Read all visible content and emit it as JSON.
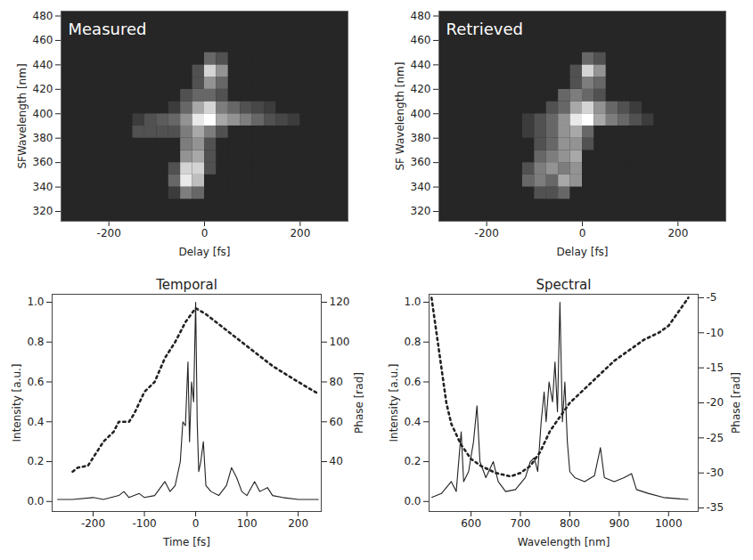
{
  "chart_data": [
    {
      "type": "heatmap",
      "title": "Measured",
      "x_label": "Delay [fs]",
      "y_label": "SFWavelength [nm]",
      "xlim": [
        -300,
        300
      ],
      "ylim": [
        312,
        484
      ],
      "xticks": [
        -200,
        0,
        200
      ],
      "yticks": [
        320,
        340,
        360,
        380,
        400,
        420,
        440,
        460,
        480
      ],
      "x_bins": [
        -150,
        -125,
        -100,
        -75,
        -50,
        -25,
        0,
        25,
        50,
        75,
        100,
        125,
        150,
        175,
        200
      ],
      "y_bins": [
        330,
        340,
        350,
        360,
        370,
        380,
        390,
        400,
        410,
        420,
        430,
        440,
        450
      ],
      "cells": [
        [
          0,
          0,
          0,
          0.1,
          0.4,
          0.3,
          0,
          0,
          0,
          0,
          0,
          0,
          0,
          0
        ],
        [
          0,
          0,
          0,
          0.3,
          0.9,
          0.7,
          0,
          0,
          0,
          0,
          0,
          0,
          0,
          0
        ],
        [
          0,
          0,
          0,
          0.2,
          0.8,
          0.8,
          0.2,
          0,
          0,
          0,
          0,
          0,
          0,
          0
        ],
        [
          0,
          0,
          0,
          0,
          0.5,
          0.6,
          0.2,
          0,
          0,
          0,
          0,
          0,
          0,
          0
        ],
        [
          0,
          0,
          0,
          0,
          0.4,
          0.5,
          0.2,
          0,
          0,
          0,
          0,
          0,
          0,
          0
        ],
        [
          0.2,
          0.2,
          0.2,
          0.2,
          0.4,
          0.6,
          0.4,
          0.2,
          0,
          0,
          0,
          0,
          0,
          0
        ],
        [
          0.1,
          0.2,
          0.25,
          0.3,
          0.5,
          0.9,
          1.0,
          0.6,
          0.5,
          0.4,
          0.3,
          0.2,
          0.15,
          0.1
        ],
        [
          0,
          0,
          0,
          0.1,
          0.3,
          0.6,
          0.8,
          0.4,
          0.3,
          0.2,
          0.15,
          0.1,
          0,
          0
        ],
        [
          0,
          0,
          0,
          0,
          0.2,
          0.3,
          0.3,
          0.2,
          0,
          0,
          0,
          0,
          0,
          0
        ],
        [
          0,
          0,
          0,
          0,
          0,
          0.2,
          0.5,
          0.3,
          0,
          0,
          0,
          0,
          0,
          0
        ],
        [
          0,
          0,
          0,
          0,
          0,
          0.2,
          0.8,
          0.5,
          0,
          0,
          0,
          0,
          0,
          0
        ],
        [
          0,
          0,
          0,
          0,
          0,
          0,
          0.3,
          0.2,
          0,
          0,
          0,
          0,
          0,
          0
        ]
      ]
    },
    {
      "type": "heatmap",
      "title": "Retrieved",
      "x_label": "Delay [fs]",
      "y_label": "SF Wavelength [nm]",
      "xlim": [
        -300,
        300
      ],
      "ylim": [
        312,
        484
      ],
      "xticks": [
        -200,
        0,
        200
      ],
      "yticks": [
        320,
        340,
        360,
        380,
        400,
        420,
        440,
        460,
        480
      ],
      "x_bins": [
        -150,
        -125,
        -100,
        -75,
        -50,
        -25,
        0,
        25,
        50,
        75,
        100,
        125,
        150,
        175,
        200
      ],
      "y_bins": [
        330,
        340,
        350,
        360,
        370,
        380,
        390,
        400,
        410,
        420,
        430,
        440,
        450
      ],
      "cells": [
        [
          0,
          0,
          0.2,
          0.2,
          0.3,
          0,
          0,
          0,
          0,
          0,
          0,
          0,
          0,
          0
        ],
        [
          0,
          0.3,
          0.4,
          0.3,
          0.6,
          0.5,
          0,
          0,
          0,
          0,
          0,
          0,
          0,
          0
        ],
        [
          0,
          0.2,
          0.4,
          0.5,
          0.4,
          0.5,
          0,
          0,
          0,
          0,
          0,
          0,
          0,
          0
        ],
        [
          0,
          0,
          0.3,
          0.4,
          0.5,
          0.6,
          0,
          0,
          0,
          0,
          0,
          0,
          0,
          0
        ],
        [
          0,
          0,
          0.2,
          0.3,
          0.5,
          0.5,
          0.2,
          0,
          0,
          0,
          0,
          0,
          0,
          0
        ],
        [
          0,
          0.1,
          0.2,
          0.3,
          0.5,
          0.6,
          0.3,
          0,
          0,
          0,
          0,
          0,
          0,
          0
        ],
        [
          0,
          0.1,
          0.2,
          0.3,
          0.5,
          0.9,
          1.0,
          0.6,
          0.4,
          0.3,
          0.2,
          0.1,
          0,
          0
        ],
        [
          0,
          0,
          0,
          0.2,
          0.3,
          0.6,
          0.8,
          0.5,
          0.3,
          0.2,
          0.1,
          0,
          0,
          0
        ],
        [
          0,
          0,
          0,
          0,
          0.3,
          0.4,
          0.3,
          0.2,
          0,
          0,
          0,
          0,
          0,
          0
        ],
        [
          0,
          0,
          0,
          0,
          0,
          0.2,
          0.4,
          0.3,
          0,
          0,
          0,
          0,
          0,
          0
        ],
        [
          0,
          0,
          0,
          0,
          0,
          0.2,
          0.8,
          0.5,
          0,
          0,
          0,
          0,
          0,
          0
        ],
        [
          0,
          0,
          0,
          0,
          0,
          0,
          0.3,
          0.2,
          0,
          0,
          0,
          0,
          0,
          0
        ]
      ]
    },
    {
      "type": "line",
      "title": "Temporal",
      "x_label": "Time [fs]",
      "y_label": "Intensity [a.u.]",
      "y2_label": "Phase [rad]",
      "xlim": [
        -280,
        245
      ],
      "ylim": [
        -0.05,
        1.04
      ],
      "y2lim": [
        15,
        124
      ],
      "xticks": [
        -200,
        -100,
        0,
        100,
        200
      ],
      "yticks": [
        {
          "value": 0,
          "label": "0.0"
        },
        {
          "value": 0.2,
          "label": "0.2"
        },
        {
          "value": 0.4,
          "label": "0.4"
        },
        {
          "value": 0.6,
          "label": "0.6"
        },
        {
          "value": 0.8,
          "label": "0.8"
        },
        {
          "value": 1,
          "label": "1.0"
        }
      ],
      "y2ticks": [
        40,
        60,
        80,
        100,
        120
      ],
      "series": [
        {
          "line_style": "solid",
          "color": "#222222",
          "x": [
            -270,
            -240,
            -200,
            -180,
            -150,
            -140,
            -130,
            -110,
            -100,
            -80,
            -60,
            -50,
            -40,
            -30,
            -25,
            -20,
            -15,
            -12,
            -8,
            -4,
            0,
            3,
            6,
            10,
            15,
            20,
            30,
            45,
            60,
            70,
            80,
            90,
            100,
            115,
            125,
            140,
            150,
            170,
            200,
            240
          ],
          "values": [
            0.01,
            0.01,
            0.02,
            0.01,
            0.03,
            0.05,
            0.02,
            0.04,
            0.02,
            0.03,
            0.1,
            0.05,
            0.08,
            0.2,
            0.4,
            0.38,
            0.7,
            0.3,
            0.6,
            0.5,
            1.0,
            0.4,
            0.15,
            0.2,
            0.3,
            0.08,
            0.05,
            0.03,
            0.08,
            0.17,
            0.12,
            0.05,
            0.03,
            0.1,
            0.05,
            0.07,
            0.03,
            0.02,
            0.01,
            0.01
          ]
        },
        {
          "line_style": "dotted",
          "color": "#222222",
          "axis": "y2",
          "x": [
            -240,
            -230,
            -210,
            -200,
            -180,
            -160,
            -150,
            -130,
            -120,
            -100,
            -80,
            -60,
            -40,
            -20,
            0,
            20,
            50,
            100,
            150,
            200,
            240
          ],
          "values": [
            35,
            37,
            38,
            42,
            50,
            55,
            60,
            60,
            64,
            75,
            80,
            92,
            100,
            110,
            117,
            114,
            108,
            98,
            88,
            80,
            74
          ]
        }
      ]
    },
    {
      "type": "line",
      "title": "Spectral",
      "x_label": "Wavelength [nm]",
      "y_label": "Intensity [a.u.]",
      "y2_label": "Phase [rad]",
      "xlim": [
        515,
        1060
      ],
      "ylim": [
        -0.05,
        1.04
      ],
      "y2lim": [
        -35.5,
        -4.5
      ],
      "xticks": [
        600,
        700,
        800,
        900,
        1000
      ],
      "yticks": [
        {
          "value": 0,
          "label": "0.0"
        },
        {
          "value": 0.2,
          "label": "0.2"
        },
        {
          "value": 0.4,
          "label": "0.4"
        },
        {
          "value": 0.6,
          "label": "0.6"
        },
        {
          "value": 0.8,
          "label": "0.8"
        },
        {
          "value": 1,
          "label": "1.0"
        }
      ],
      "y2ticks": [
        -5,
        -10,
        -15,
        -20,
        -25,
        -30,
        -35
      ],
      "series": [
        {
          "line_style": "solid",
          "color": "#222222",
          "x": [
            520,
            540,
            560,
            570,
            580,
            585,
            595,
            605,
            612,
            618,
            630,
            645,
            655,
            670,
            690,
            710,
            720,
            728,
            735,
            742,
            748,
            752,
            758,
            765,
            770,
            775,
            780,
            785,
            790,
            795,
            800,
            810,
            830,
            850,
            862,
            870,
            890,
            910,
            925,
            935,
            960,
            990,
            1040
          ],
          "values": [
            0.02,
            0.04,
            0.1,
            0.05,
            0.35,
            0.1,
            0.15,
            0.3,
            0.48,
            0.2,
            0.12,
            0.2,
            0.1,
            0.05,
            0.06,
            0.12,
            0.2,
            0.22,
            0.15,
            0.4,
            0.55,
            0.4,
            0.6,
            0.5,
            0.7,
            0.45,
            1.0,
            0.4,
            0.6,
            0.3,
            0.15,
            0.12,
            0.1,
            0.13,
            0.27,
            0.12,
            0.1,
            0.12,
            0.14,
            0.06,
            0.04,
            0.02,
            0.01
          ]
        },
        {
          "line_style": "dotted",
          "color": "#222222",
          "axis": "y2",
          "x": [
            520,
            530,
            540,
            550,
            560,
            580,
            600,
            620,
            650,
            680,
            700,
            720,
            740,
            760,
            780,
            800,
            830,
            860,
            890,
            920,
            950,
            980,
            1000,
            1020,
            1040
          ],
          "values": [
            -5,
            -10,
            -15,
            -20,
            -23,
            -26,
            -28,
            -29,
            -30,
            -30.5,
            -30,
            -29,
            -27,
            -24,
            -22,
            -20,
            -18,
            -16,
            -14,
            -12.5,
            -11,
            -10,
            -9,
            -7,
            -5
          ]
        }
      ]
    }
  ]
}
